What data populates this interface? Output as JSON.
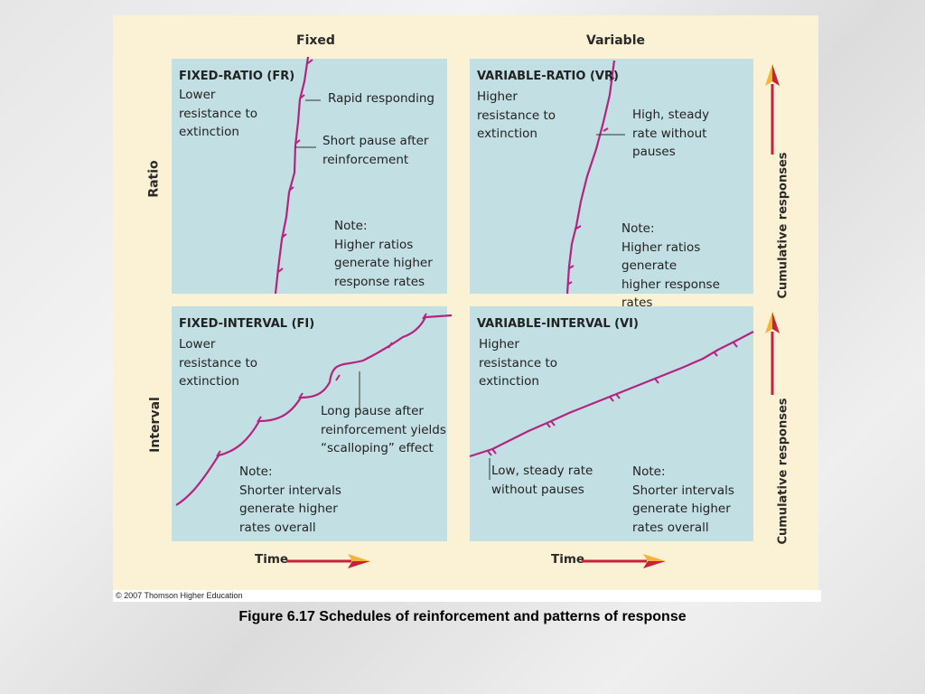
{
  "figure": {
    "column_headers": [
      "Fixed",
      "Variable"
    ],
    "row_headers": [
      "Ratio",
      "Interval"
    ],
    "panels": {
      "fr": {
        "title": "FIXED-RATIO (FR)",
        "description": "Lower\nresistance to\nextinction",
        "callout1": "Rapid responding",
        "callout2": "Short pause after\nreinforcement",
        "note": "Note:\nHigher ratios\ngenerate higher\nresponse rates"
      },
      "vr": {
        "title": "VARIABLE-RATIO (VR)",
        "description": "Higher\nresistance to\nextinction",
        "callout1": "High, steady\nrate without\npauses",
        "note": "Note:\nHigher ratios generate\nhigher response rates"
      },
      "fi": {
        "title": "FIXED-INTERVAL (FI)",
        "description": "Lower\nresistance to\nextinction",
        "callout1": "Long pause after\nreinforcement yields\n“scalloping” effect",
        "note": "Note:\nShorter intervals\ngenerate higher\nrates overall"
      },
      "vi": {
        "title": "VARIABLE-INTERVAL (VI)",
        "description": "Higher\nresistance to\nextinction",
        "callout1": "Low, steady rate\nwithout pauses",
        "note": "Note:\nShorter intervals\ngenerate higher\nrates overall"
      }
    },
    "y_axis_label": "Cumulative responses",
    "x_axis_label": "Time",
    "copyright": "© 2007 Thomson Higher Education",
    "curve_color": "#b4237f",
    "panel_color": "#c2dfe3",
    "arrow_colors": {
      "shaft": "#c8213a",
      "head_top": "#f2b53a"
    }
  },
  "caption": "Figure 6.17  Schedules of reinforcement and patterns of response"
}
